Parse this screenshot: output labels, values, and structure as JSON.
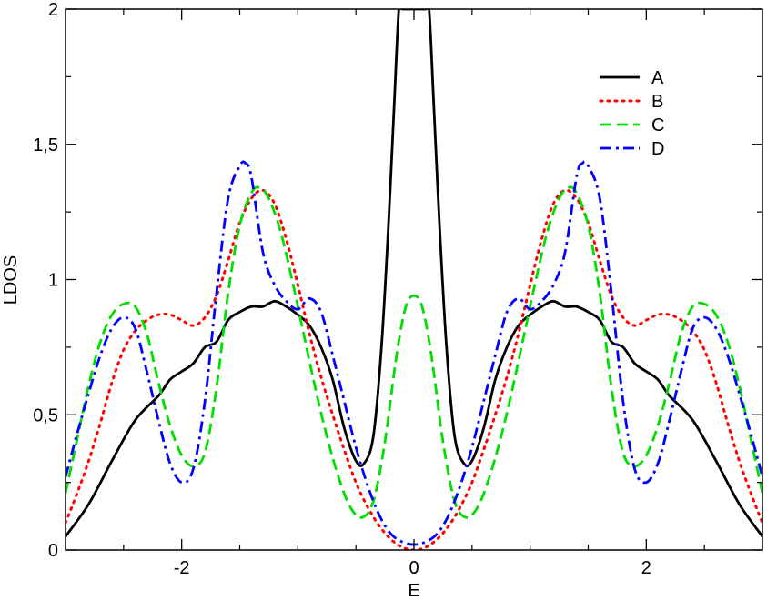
{
  "chart_data": {
    "type": "line",
    "title": "",
    "xlabel": "E",
    "ylabel": "LDOS",
    "xlim": [
      -3,
      3
    ],
    "ylim": [
      0,
      2
    ],
    "grid": false,
    "legend_position": "top-right",
    "x_ticks": [
      {
        "value": -2,
        "label": "-2"
      },
      {
        "value": 0,
        "label": "0"
      },
      {
        "value": 2,
        "label": "2"
      }
    ],
    "y_ticks": [
      {
        "value": 0,
        "label": "0"
      },
      {
        "value": 0.5,
        "label": "0,5"
      },
      {
        "value": 1,
        "label": "1"
      },
      {
        "value": 1.5,
        "label": "1,5"
      },
      {
        "value": 2,
        "label": "2"
      }
    ],
    "series": [
      {
        "name": "A",
        "color": "#000000",
        "style": "solid",
        "points": [
          [
            -3.0,
            0.05
          ],
          [
            -2.8,
            0.17
          ],
          [
            -2.6,
            0.33
          ],
          [
            -2.4,
            0.48
          ],
          [
            -2.2,
            0.57
          ],
          [
            -2.1,
            0.63
          ],
          [
            -2.0,
            0.66
          ],
          [
            -1.9,
            0.69
          ],
          [
            -1.8,
            0.75
          ],
          [
            -1.7,
            0.77
          ],
          [
            -1.6,
            0.85
          ],
          [
            -1.5,
            0.88
          ],
          [
            -1.4,
            0.9
          ],
          [
            -1.3,
            0.9
          ],
          [
            -1.2,
            0.92
          ],
          [
            -1.1,
            0.9
          ],
          [
            -1.0,
            0.87
          ],
          [
            -0.9,
            0.83
          ],
          [
            -0.8,
            0.75
          ],
          [
            -0.7,
            0.63
          ],
          [
            -0.6,
            0.45
          ],
          [
            -0.5,
            0.33
          ],
          [
            -0.43,
            0.32
          ],
          [
            -0.35,
            0.42
          ],
          [
            -0.28,
            0.75
          ],
          [
            -0.22,
            1.2
          ],
          [
            -0.17,
            1.65
          ],
          [
            -0.13,
            2.0
          ],
          [
            -0.1,
            2.0
          ],
          [
            0.1,
            2.0
          ],
          [
            0.13,
            2.0
          ],
          [
            0.17,
            1.65
          ],
          [
            0.22,
            1.2
          ],
          [
            0.28,
            0.75
          ],
          [
            0.35,
            0.42
          ],
          [
            0.43,
            0.32
          ],
          [
            0.5,
            0.33
          ],
          [
            0.6,
            0.45
          ],
          [
            0.7,
            0.63
          ],
          [
            0.8,
            0.75
          ],
          [
            0.9,
            0.83
          ],
          [
            1.0,
            0.87
          ],
          [
            1.1,
            0.9
          ],
          [
            1.2,
            0.92
          ],
          [
            1.3,
            0.9
          ],
          [
            1.4,
            0.9
          ],
          [
            1.5,
            0.88
          ],
          [
            1.6,
            0.85
          ],
          [
            1.7,
            0.77
          ],
          [
            1.8,
            0.75
          ],
          [
            1.9,
            0.69
          ],
          [
            2.0,
            0.66
          ],
          [
            2.1,
            0.63
          ],
          [
            2.2,
            0.57
          ],
          [
            2.4,
            0.48
          ],
          [
            2.6,
            0.33
          ],
          [
            2.8,
            0.17
          ],
          [
            3.0,
            0.05
          ]
        ]
      },
      {
        "name": "B",
        "color": "#ff0000",
        "style": "dotted",
        "points": [
          [
            -3.0,
            0.1
          ],
          [
            -2.9,
            0.21
          ],
          [
            -2.8,
            0.33
          ],
          [
            -2.7,
            0.47
          ],
          [
            -2.6,
            0.62
          ],
          [
            -2.5,
            0.74
          ],
          [
            -2.4,
            0.81
          ],
          [
            -2.3,
            0.85
          ],
          [
            -2.2,
            0.87
          ],
          [
            -2.1,
            0.87
          ],
          [
            -2.0,
            0.85
          ],
          [
            -1.9,
            0.83
          ],
          [
            -1.8,
            0.86
          ],
          [
            -1.7,
            0.94
          ],
          [
            -1.6,
            1.07
          ],
          [
            -1.5,
            1.21
          ],
          [
            -1.4,
            1.3
          ],
          [
            -1.3,
            1.33
          ],
          [
            -1.2,
            1.28
          ],
          [
            -1.1,
            1.15
          ],
          [
            -1.0,
            0.98
          ],
          [
            -0.9,
            0.8
          ],
          [
            -0.8,
            0.64
          ],
          [
            -0.7,
            0.5
          ],
          [
            -0.6,
            0.37
          ],
          [
            -0.5,
            0.25
          ],
          [
            -0.4,
            0.16
          ],
          [
            -0.3,
            0.09
          ],
          [
            -0.2,
            0.04
          ],
          [
            -0.1,
            0.01
          ],
          [
            0.0,
            0.0
          ],
          [
            0.1,
            0.01
          ],
          [
            0.2,
            0.04
          ],
          [
            0.3,
            0.09
          ],
          [
            0.4,
            0.16
          ],
          [
            0.5,
            0.25
          ],
          [
            0.6,
            0.37
          ],
          [
            0.7,
            0.5
          ],
          [
            0.8,
            0.64
          ],
          [
            0.9,
            0.8
          ],
          [
            1.0,
            0.98
          ],
          [
            1.1,
            1.15
          ],
          [
            1.2,
            1.28
          ],
          [
            1.3,
            1.33
          ],
          [
            1.4,
            1.3
          ],
          [
            1.5,
            1.21
          ],
          [
            1.6,
            1.07
          ],
          [
            1.7,
            0.94
          ],
          [
            1.8,
            0.86
          ],
          [
            1.9,
            0.83
          ],
          [
            2.0,
            0.85
          ],
          [
            2.1,
            0.87
          ],
          [
            2.2,
            0.87
          ],
          [
            2.3,
            0.85
          ],
          [
            2.4,
            0.81
          ],
          [
            2.5,
            0.74
          ],
          [
            2.6,
            0.62
          ],
          [
            2.7,
            0.47
          ],
          [
            2.8,
            0.33
          ],
          [
            2.9,
            0.21
          ],
          [
            3.0,
            0.1
          ]
        ]
      },
      {
        "name": "C",
        "color": "#00dd00",
        "style": "dashed",
        "points": [
          [
            -3.0,
            0.21
          ],
          [
            -2.9,
            0.41
          ],
          [
            -2.8,
            0.61
          ],
          [
            -2.7,
            0.77
          ],
          [
            -2.6,
            0.87
          ],
          [
            -2.5,
            0.91
          ],
          [
            -2.4,
            0.9
          ],
          [
            -2.3,
            0.8
          ],
          [
            -2.2,
            0.62
          ],
          [
            -2.1,
            0.46
          ],
          [
            -2.0,
            0.35
          ],
          [
            -1.9,
            0.31
          ],
          [
            -1.8,
            0.36
          ],
          [
            -1.7,
            0.6
          ],
          [
            -1.6,
            0.95
          ],
          [
            -1.5,
            1.2
          ],
          [
            -1.4,
            1.32
          ],
          [
            -1.33,
            1.34
          ],
          [
            -1.25,
            1.3
          ],
          [
            -1.15,
            1.18
          ],
          [
            -1.05,
            1.0
          ],
          [
            -0.95,
            0.8
          ],
          [
            -0.85,
            0.6
          ],
          [
            -0.75,
            0.42
          ],
          [
            -0.65,
            0.27
          ],
          [
            -0.55,
            0.16
          ],
          [
            -0.45,
            0.12
          ],
          [
            -0.35,
            0.18
          ],
          [
            -0.25,
            0.4
          ],
          [
            -0.15,
            0.72
          ],
          [
            -0.07,
            0.9
          ],
          [
            0.0,
            0.94
          ],
          [
            0.07,
            0.9
          ],
          [
            0.15,
            0.72
          ],
          [
            0.25,
            0.4
          ],
          [
            0.35,
            0.18
          ],
          [
            0.45,
            0.12
          ],
          [
            0.55,
            0.16
          ],
          [
            0.65,
            0.27
          ],
          [
            0.75,
            0.42
          ],
          [
            0.85,
            0.6
          ],
          [
            0.95,
            0.8
          ],
          [
            1.05,
            1.0
          ],
          [
            1.15,
            1.18
          ],
          [
            1.25,
            1.3
          ],
          [
            1.33,
            1.34
          ],
          [
            1.4,
            1.32
          ],
          [
            1.5,
            1.2
          ],
          [
            1.6,
            0.95
          ],
          [
            1.7,
            0.6
          ],
          [
            1.8,
            0.36
          ],
          [
            1.9,
            0.31
          ],
          [
            2.0,
            0.35
          ],
          [
            2.1,
            0.46
          ],
          [
            2.2,
            0.62
          ],
          [
            2.3,
            0.8
          ],
          [
            2.4,
            0.9
          ],
          [
            2.5,
            0.91
          ],
          [
            2.6,
            0.87
          ],
          [
            2.7,
            0.77
          ],
          [
            2.8,
            0.61
          ],
          [
            2.9,
            0.41
          ],
          [
            3.0,
            0.21
          ]
        ]
      },
      {
        "name": "D",
        "color": "#0000ff",
        "style": "dash-dot",
        "points": [
          [
            -3.0,
            0.27
          ],
          [
            -2.9,
            0.43
          ],
          [
            -2.8,
            0.58
          ],
          [
            -2.7,
            0.72
          ],
          [
            -2.6,
            0.82
          ],
          [
            -2.5,
            0.86
          ],
          [
            -2.4,
            0.82
          ],
          [
            -2.3,
            0.66
          ],
          [
            -2.2,
            0.48
          ],
          [
            -2.1,
            0.32
          ],
          [
            -2.0,
            0.25
          ],
          [
            -1.9,
            0.3
          ],
          [
            -1.8,
            0.55
          ],
          [
            -1.7,
            0.95
          ],
          [
            -1.6,
            1.3
          ],
          [
            -1.5,
            1.42
          ],
          [
            -1.45,
            1.43
          ],
          [
            -1.4,
            1.38
          ],
          [
            -1.3,
            1.1
          ],
          [
            -1.2,
            0.98
          ],
          [
            -1.1,
            0.92
          ],
          [
            -1.0,
            0.89
          ],
          [
            -0.9,
            0.93
          ],
          [
            -0.8,
            0.88
          ],
          [
            -0.7,
            0.72
          ],
          [
            -0.6,
            0.55
          ],
          [
            -0.5,
            0.38
          ],
          [
            -0.4,
            0.24
          ],
          [
            -0.3,
            0.13
          ],
          [
            -0.2,
            0.06
          ],
          [
            -0.1,
            0.03
          ],
          [
            0.0,
            0.02
          ],
          [
            0.1,
            0.03
          ],
          [
            0.2,
            0.06
          ],
          [
            0.3,
            0.13
          ],
          [
            0.4,
            0.24
          ],
          [
            0.5,
            0.38
          ],
          [
            0.6,
            0.55
          ],
          [
            0.7,
            0.72
          ],
          [
            0.8,
            0.88
          ],
          [
            0.9,
            0.93
          ],
          [
            1.0,
            0.89
          ],
          [
            1.1,
            0.92
          ],
          [
            1.2,
            0.98
          ],
          [
            1.3,
            1.1
          ],
          [
            1.4,
            1.38
          ],
          [
            1.45,
            1.43
          ],
          [
            1.5,
            1.42
          ],
          [
            1.6,
            1.3
          ],
          [
            1.7,
            0.95
          ],
          [
            1.8,
            0.55
          ],
          [
            1.9,
            0.3
          ],
          [
            2.0,
            0.25
          ],
          [
            2.1,
            0.32
          ],
          [
            2.2,
            0.48
          ],
          [
            2.3,
            0.66
          ],
          [
            2.4,
            0.82
          ],
          [
            2.5,
            0.86
          ],
          [
            2.6,
            0.82
          ],
          [
            2.7,
            0.72
          ],
          [
            2.8,
            0.58
          ],
          [
            2.9,
            0.43
          ],
          [
            3.0,
            0.27
          ]
        ]
      }
    ]
  }
}
